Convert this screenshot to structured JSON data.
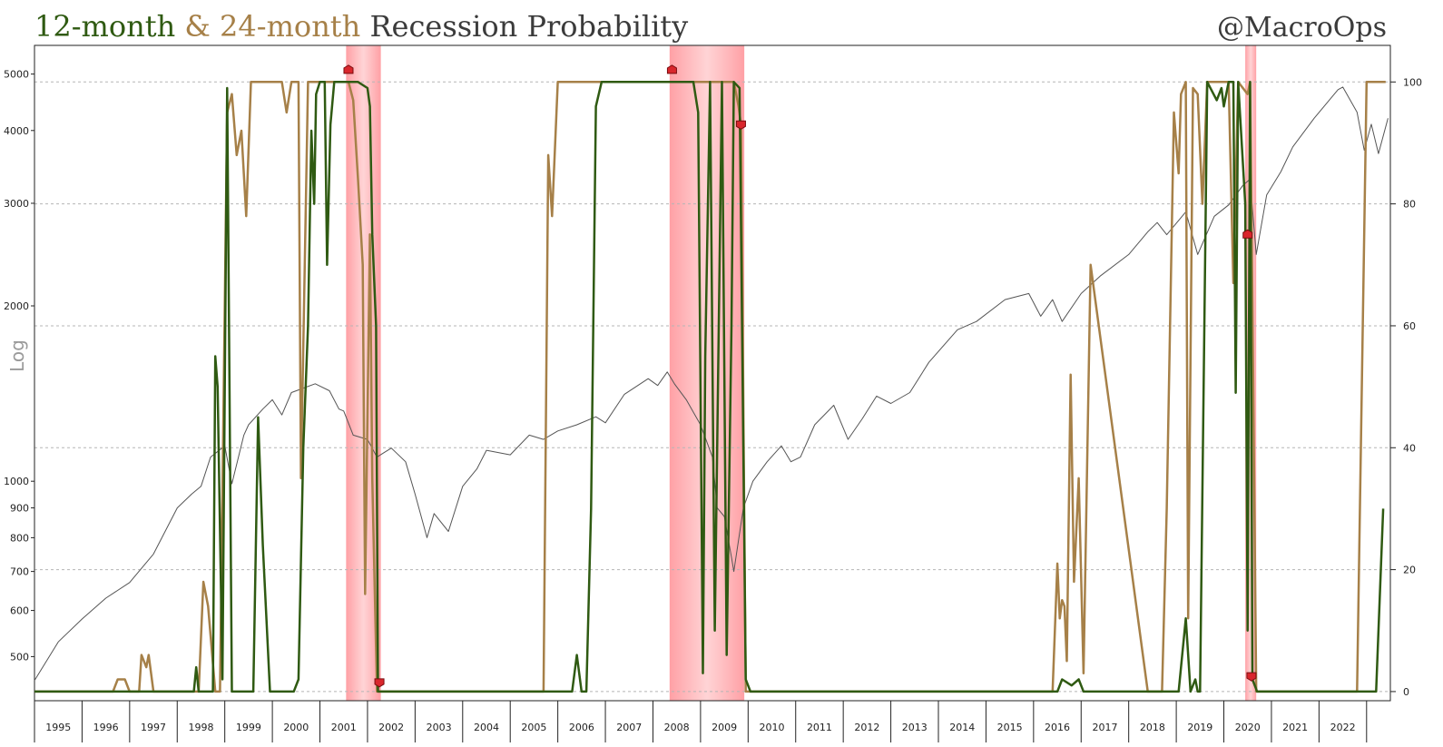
{
  "chart_data": {
    "type": "line",
    "title": {
      "part1": "12-month",
      "sep": " & ",
      "part2": "24-month",
      "part3": " Recession Probability",
      "part1_color": "#2f5a12",
      "part2_color": "#a68048",
      "part3_color": "#3b3b3b"
    },
    "watermark": "@MacroOps",
    "left_axis": {
      "label": "Log",
      "scale": "log",
      "range": [
        420,
        5600
      ],
      "ticks": [
        500,
        600,
        700,
        800,
        900,
        1000,
        2000,
        3000,
        4000,
        5000
      ]
    },
    "right_axis": {
      "range": [
        -1.5,
        106
      ],
      "ticks": [
        0,
        20,
        40,
        60,
        80,
        100
      ]
    },
    "x_axis": {
      "range": [
        1994.5,
        2023.0
      ],
      "tick_labels": [
        "1995",
        "1996",
        "1997",
        "1998",
        "1999",
        "2000",
        "2001",
        "2002",
        "2003",
        "2004",
        "2005",
        "2006",
        "2007",
        "2008",
        "2009",
        "2010",
        "2011",
        "2012",
        "2013",
        "2014",
        "2015",
        "2016",
        "2017",
        "2018",
        "2019",
        "2020",
        "2021",
        "2022"
      ]
    },
    "grid": "horizontal-dashed",
    "recession_bands": [
      {
        "start": 2001.05,
        "end": 2001.78
      },
      {
        "start": 2007.85,
        "end": 2009.42
      },
      {
        "start": 2019.95,
        "end": 2020.18
      }
    ],
    "markers": [
      {
        "x": 2001.1,
        "y": 102,
        "dir": "up"
      },
      {
        "x": 2001.75,
        "y": 1.5,
        "dir": "down"
      },
      {
        "x": 2007.9,
        "y": 102,
        "dir": "up"
      },
      {
        "x": 2009.35,
        "y": 93,
        "dir": "down"
      },
      {
        "x": 2020.0,
        "y": 75,
        "dir": "up"
      },
      {
        "x": 2020.08,
        "y": 2.5,
        "dir": "down"
      }
    ],
    "series": [
      {
        "axis": "left",
        "color": "#555555",
        "width": 1,
        "values": [
          [
            1994.5,
            455
          ],
          [
            1995.0,
            530
          ],
          [
            1995.5,
            580
          ],
          [
            1996.0,
            630
          ],
          [
            1996.5,
            670
          ],
          [
            1997.0,
            750
          ],
          [
            1997.5,
            900
          ],
          [
            1997.8,
            950
          ],
          [
            1998.0,
            980
          ],
          [
            1998.2,
            1100
          ],
          [
            1998.5,
            1150
          ],
          [
            1998.65,
            990
          ],
          [
            1998.9,
            1200
          ],
          [
            1999.0,
            1250
          ],
          [
            1999.3,
            1330
          ],
          [
            1999.5,
            1380
          ],
          [
            1999.7,
            1300
          ],
          [
            1999.9,
            1420
          ],
          [
            2000.1,
            1440
          ],
          [
            2000.4,
            1470
          ],
          [
            2000.7,
            1430
          ],
          [
            2000.9,
            1330
          ],
          [
            2001.0,
            1320
          ],
          [
            2001.2,
            1200
          ],
          [
            2001.5,
            1180
          ],
          [
            2001.7,
            1100
          ],
          [
            2001.85,
            1120
          ],
          [
            2002.0,
            1140
          ],
          [
            2002.3,
            1080
          ],
          [
            2002.5,
            950
          ],
          [
            2002.75,
            800
          ],
          [
            2002.9,
            880
          ],
          [
            2003.2,
            820
          ],
          [
            2003.5,
            980
          ],
          [
            2003.8,
            1050
          ],
          [
            2004.0,
            1130
          ],
          [
            2004.5,
            1110
          ],
          [
            2004.9,
            1200
          ],
          [
            2005.2,
            1180
          ],
          [
            2005.5,
            1220
          ],
          [
            2005.9,
            1250
          ],
          [
            2006.3,
            1290
          ],
          [
            2006.5,
            1260
          ],
          [
            2006.9,
            1410
          ],
          [
            2007.4,
            1500
          ],
          [
            2007.6,
            1460
          ],
          [
            2007.8,
            1540
          ],
          [
            2007.95,
            1470
          ],
          [
            2008.2,
            1380
          ],
          [
            2008.5,
            1250
          ],
          [
            2008.75,
            1100
          ],
          [
            2008.85,
            900
          ],
          [
            2009.0,
            870
          ],
          [
            2009.15,
            740
          ],
          [
            2009.2,
            700
          ],
          [
            2009.4,
            900
          ],
          [
            2009.6,
            1000
          ],
          [
            2009.9,
            1080
          ],
          [
            2010.2,
            1150
          ],
          [
            2010.4,
            1080
          ],
          [
            2010.6,
            1100
          ],
          [
            2010.9,
            1250
          ],
          [
            2011.3,
            1350
          ],
          [
            2011.6,
            1180
          ],
          [
            2011.9,
            1280
          ],
          [
            2012.2,
            1400
          ],
          [
            2012.5,
            1360
          ],
          [
            2012.9,
            1420
          ],
          [
            2013.3,
            1600
          ],
          [
            2013.9,
            1820
          ],
          [
            2014.3,
            1880
          ],
          [
            2014.9,
            2050
          ],
          [
            2015.4,
            2100
          ],
          [
            2015.65,
            1920
          ],
          [
            2015.9,
            2050
          ],
          [
            2016.1,
            1880
          ],
          [
            2016.5,
            2100
          ],
          [
            2016.9,
            2250
          ],
          [
            2017.5,
            2450
          ],
          [
            2017.9,
            2680
          ],
          [
            2018.1,
            2780
          ],
          [
            2018.3,
            2650
          ],
          [
            2018.7,
            2900
          ],
          [
            2018.95,
            2450
          ],
          [
            2019.3,
            2850
          ],
          [
            2019.6,
            2980
          ],
          [
            2019.9,
            3220
          ],
          [
            2020.05,
            3300
          ],
          [
            2020.18,
            2450
          ],
          [
            2020.4,
            3100
          ],
          [
            2020.7,
            3400
          ],
          [
            2020.95,
            3750
          ],
          [
            2021.4,
            4200
          ],
          [
            2021.9,
            4700
          ],
          [
            2022.0,
            4750
          ],
          [
            2022.3,
            4300
          ],
          [
            2022.45,
            3700
          ],
          [
            2022.6,
            4100
          ],
          [
            2022.75,
            3650
          ],
          [
            2022.95,
            4200
          ]
        ]
      },
      {
        "axis": "right",
        "color": "#a68048",
        "width": 2.5,
        "values": [
          [
            1994.5,
            0
          ],
          [
            1996.15,
            0
          ],
          [
            1996.25,
            2
          ],
          [
            1996.4,
            2
          ],
          [
            1996.5,
            0
          ],
          [
            1996.7,
            0
          ],
          [
            1996.75,
            6
          ],
          [
            1996.85,
            4
          ],
          [
            1996.9,
            6
          ],
          [
            1997.0,
            0
          ],
          [
            1997.95,
            0
          ],
          [
            1998.05,
            18
          ],
          [
            1998.15,
            14
          ],
          [
            1998.3,
            0
          ],
          [
            1998.4,
            0
          ],
          [
            1998.55,
            95
          ],
          [
            1998.65,
            98
          ],
          [
            1998.75,
            88
          ],
          [
            1998.85,
            92
          ],
          [
            1998.95,
            78
          ],
          [
            1999.05,
            100
          ],
          [
            1999.7,
            100
          ],
          [
            1999.8,
            95
          ],
          [
            1999.9,
            100
          ],
          [
            2000.05,
            100
          ],
          [
            2000.1,
            35
          ],
          [
            2000.25,
            100
          ],
          [
            2000.55,
            100
          ],
          [
            2001.1,
            100
          ],
          [
            2001.2,
            97
          ],
          [
            2001.3,
            84
          ],
          [
            2001.4,
            70
          ],
          [
            2001.45,
            16
          ],
          [
            2001.55,
            75
          ],
          [
            2001.6,
            35
          ],
          [
            2001.7,
            0
          ],
          [
            2005.2,
            0
          ],
          [
            2005.3,
            88
          ],
          [
            2005.38,
            78
          ],
          [
            2005.5,
            100
          ],
          [
            2007.1,
            100
          ],
          [
            2009.2,
            100
          ],
          [
            2009.3,
            96
          ],
          [
            2009.35,
            93
          ],
          [
            2009.45,
            0
          ],
          [
            2015.9,
            0
          ],
          [
            2016.0,
            21
          ],
          [
            2016.05,
            12
          ],
          [
            2016.1,
            15
          ],
          [
            2016.15,
            14
          ],
          [
            2016.2,
            5
          ],
          [
            2016.28,
            52
          ],
          [
            2016.35,
            18
          ],
          [
            2016.45,
            35
          ],
          [
            2016.55,
            3
          ],
          [
            2016.7,
            70
          ],
          [
            2017.9,
            0
          ],
          [
            2018.2,
            0
          ],
          [
            2018.3,
            30
          ],
          [
            2018.45,
            95
          ],
          [
            2018.55,
            85
          ],
          [
            2018.6,
            98
          ],
          [
            2018.7,
            100
          ],
          [
            2018.75,
            12
          ],
          [
            2018.85,
            99
          ],
          [
            2018.95,
            98
          ],
          [
            2019.05,
            80
          ],
          [
            2019.15,
            100
          ],
          [
            2019.6,
            100
          ],
          [
            2019.7,
            67
          ],
          [
            2019.8,
            100
          ],
          [
            2020.0,
            98
          ],
          [
            2020.05,
            100
          ],
          [
            2020.1,
            64
          ],
          [
            2020.18,
            0
          ],
          [
            2022.3,
            0
          ],
          [
            2022.5,
            100
          ],
          [
            2022.9,
            100
          ]
        ]
      },
      {
        "axis": "right",
        "color": "#2f5a12",
        "width": 2.5,
        "values": [
          [
            1994.5,
            0
          ],
          [
            1997.85,
            0
          ],
          [
            1997.9,
            4
          ],
          [
            1997.95,
            0
          ],
          [
            1998.25,
            0
          ],
          [
            1998.3,
            55
          ],
          [
            1998.35,
            50
          ],
          [
            1998.45,
            2
          ],
          [
            1998.55,
            99
          ],
          [
            1998.65,
            0
          ],
          [
            1999.1,
            0
          ],
          [
            1999.2,
            45
          ],
          [
            1999.3,
            24
          ],
          [
            1999.45,
            0
          ],
          [
            1999.8,
            0
          ],
          [
            1999.95,
            0
          ],
          [
            2000.05,
            2
          ],
          [
            2000.15,
            40
          ],
          [
            2000.25,
            60
          ],
          [
            2000.32,
            92
          ],
          [
            2000.38,
            80
          ],
          [
            2000.42,
            98
          ],
          [
            2000.5,
            100
          ],
          [
            2000.6,
            100
          ],
          [
            2000.65,
            70
          ],
          [
            2000.72,
            93
          ],
          [
            2000.8,
            100
          ],
          [
            2001.3,
            100
          ],
          [
            2001.5,
            99
          ],
          [
            2001.55,
            96
          ],
          [
            2001.6,
            75
          ],
          [
            2001.68,
            60
          ],
          [
            2001.72,
            0
          ],
          [
            2005.8,
            0
          ],
          [
            2005.9,
            6
          ],
          [
            2006.0,
            0
          ],
          [
            2006.1,
            0
          ],
          [
            2006.2,
            30
          ],
          [
            2006.3,
            96
          ],
          [
            2006.42,
            100
          ],
          [
            2008.35,
            100
          ],
          [
            2008.45,
            95
          ],
          [
            2008.55,
            3
          ],
          [
            2008.6,
            55
          ],
          [
            2008.7,
            100
          ],
          [
            2008.8,
            10
          ],
          [
            2008.95,
            100
          ],
          [
            2009.05,
            6
          ],
          [
            2009.15,
            60
          ],
          [
            2009.2,
            100
          ],
          [
            2009.32,
            99
          ],
          [
            2009.45,
            2
          ],
          [
            2009.55,
            0
          ],
          [
            2016.0,
            0
          ],
          [
            2016.1,
            2
          ],
          [
            2016.3,
            1
          ],
          [
            2016.45,
            2
          ],
          [
            2016.55,
            0
          ],
          [
            2018.55,
            0
          ],
          [
            2018.7,
            12
          ],
          [
            2018.8,
            0
          ],
          [
            2018.9,
            2
          ],
          [
            2018.95,
            0
          ],
          [
            2019.0,
            0
          ],
          [
            2019.15,
            100
          ],
          [
            2019.35,
            97
          ],
          [
            2019.45,
            99
          ],
          [
            2019.5,
            96
          ],
          [
            2019.6,
            100
          ],
          [
            2019.7,
            100
          ],
          [
            2019.75,
            49
          ],
          [
            2019.8,
            100
          ],
          [
            2019.95,
            80
          ],
          [
            2020.0,
            10
          ],
          [
            2020.05,
            100
          ],
          [
            2020.1,
            2
          ],
          [
            2020.2,
            0
          ],
          [
            2022.55,
            0
          ],
          [
            2022.7,
            0
          ],
          [
            2022.85,
            30
          ]
        ]
      }
    ]
  }
}
